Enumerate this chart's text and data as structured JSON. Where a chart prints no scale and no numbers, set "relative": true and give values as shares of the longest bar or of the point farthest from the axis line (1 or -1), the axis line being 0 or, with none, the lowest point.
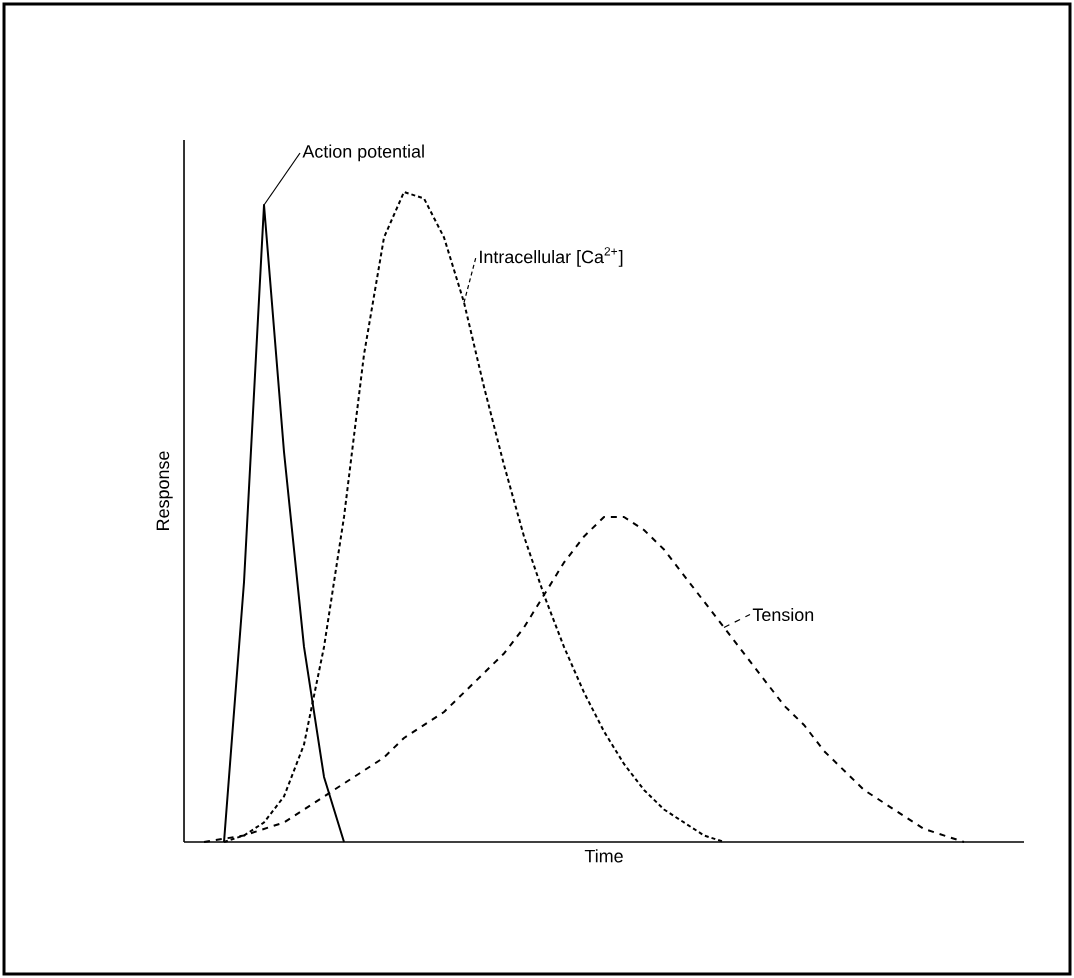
{
  "chart_data": {
    "type": "line",
    "relative": true,
    "xlabel": "Time",
    "ylabel": "Response",
    "marker": "none",
    "categories": [
      null,
      null,
      null,
      null,
      null,
      null,
      null,
      null,
      null,
      null,
      null,
      null,
      null,
      null,
      null,
      null,
      null,
      null,
      null,
      null,
      null,
      null,
      null,
      null,
      null,
      null,
      null,
      null,
      null,
      null,
      null,
      null,
      null,
      null,
      null,
      null,
      null,
      null,
      null,
      null,
      null,
      null,
      null
    ],
    "series": [
      {
        "name": "Action potential",
        "color": "#000000",
        "line_style": "solid",
        "values": [
          null,
          null,
          0,
          0.4,
          0.98,
          0.6,
          0.3,
          0.1,
          0,
          null,
          null,
          null,
          null,
          null,
          null,
          null,
          null,
          null,
          null,
          null,
          null,
          null,
          null,
          null,
          null,
          null,
          null,
          null,
          null,
          null,
          null,
          null,
          null,
          null,
          null,
          null,
          null,
          null,
          null,
          null,
          null,
          null,
          null
        ]
      },
      {
        "name": "Intracellular [Ca$^{2+}$]",
        "color": "#000000",
        "line_style": "dotted",
        "values": [
          null,
          null,
          0,
          0.01,
          0.03,
          0.07,
          0.15,
          0.3,
          0.5,
          0.75,
          0.93,
          1,
          0.99,
          0.93,
          0.83,
          0.7,
          0.58,
          0.47,
          0.38,
          0.3,
          0.23,
          0.17,
          0.12,
          0.08,
          0.05,
          0.03,
          0.01,
          0,
          null,
          null,
          null,
          null,
          null,
          null,
          null,
          null,
          null,
          null,
          null,
          null,
          null,
          null,
          null
        ]
      },
      {
        "name": "Tension",
        "color": "#000000",
        "line_style": "dashed",
        "values": [
          null,
          0,
          0.005,
          0.01,
          0.02,
          0.03,
          0.05,
          0.07,
          0.09,
          0.11,
          0.13,
          0.16,
          0.18,
          0.2,
          0.23,
          0.26,
          0.29,
          0.33,
          0.38,
          0.43,
          0.47,
          0.5,
          0.5,
          0.48,
          0.45,
          0.41,
          0.37,
          0.33,
          0.29,
          0.25,
          0.21,
          0.18,
          0.14,
          0.11,
          0.08,
          0.06,
          0.04,
          0.02,
          0.01,
          0,
          null,
          null,
          null
        ]
      }
    ]
  }
}
